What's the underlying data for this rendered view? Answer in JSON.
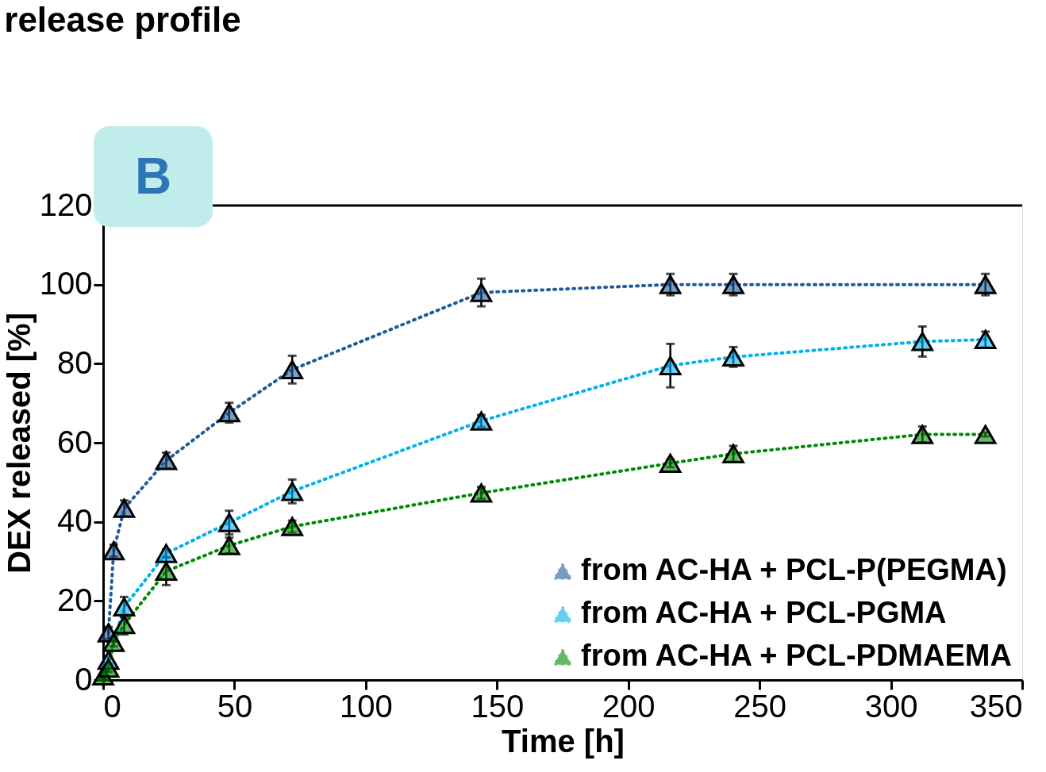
{
  "chart_data": {
    "type": "line",
    "title": "release profile",
    "xlabel": "Time [h]",
    "ylabel": "DEX released [%]",
    "annotations": [
      "B"
    ],
    "xlim": [
      0,
      350
    ],
    "xticks": [
      0,
      50,
      100,
      150,
      200,
      250,
      300,
      350
    ],
    "ylim": [
      0,
      120
    ],
    "yticks": [
      0,
      20,
      40,
      60,
      80,
      100,
      120
    ],
    "x": [
      0,
      2,
      4,
      8,
      24,
      48,
      72,
      144,
      216,
      240,
      312,
      336
    ],
    "marker": "triangle",
    "line_style": "dotted",
    "legend": "bottom right",
    "grid": false,
    "series": [
      {
        "name": "from AC-HA + PCL-P(PEGMA)",
        "color": "#1f5c99",
        "values": [
          null,
          11.9,
          32.7,
          43.4,
          55.5,
          67.6,
          78.5,
          98,
          100,
          100,
          null,
          100
        ],
        "errors": [
          null,
          1.5,
          1.5,
          2,
          2,
          2.5,
          3.5,
          3.5,
          2.7,
          2.7,
          null,
          2.7
        ]
      },
      {
        "name": "from AC-HA + PCL-PGMA",
        "color": "#00b0f0",
        "values": [
          null,
          5,
          null,
          18.5,
          32,
          39.8,
          47.7,
          65.5,
          79.5,
          81.7,
          85.6,
          86.1
        ],
        "errors": [
          null,
          1,
          null,
          2.5,
          1,
          3,
          3,
          1.5,
          5.5,
          2.5,
          3.8,
          2
        ]
      },
      {
        "name": "from AC-HA + PCL-PDMAEMA",
        "color": "#008a00",
        "values": [
          1,
          3,
          9.5,
          14,
          27.5,
          34,
          38.8,
          47.3,
          54.8,
          57.2,
          62.1,
          62.1
        ],
        "errors": [
          0.5,
          1,
          1,
          2.5,
          3.5,
          2,
          1.5,
          1.5,
          1,
          2,
          2,
          0.5
        ]
      }
    ]
  }
}
